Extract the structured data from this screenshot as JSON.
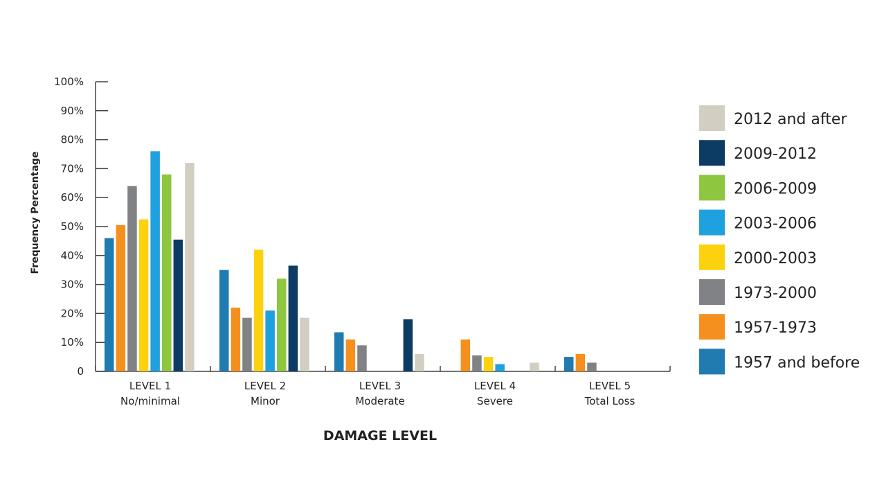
{
  "chart_data": {
    "type": "bar",
    "xlabel": "DAMAGE LEVEL",
    "ylabel": "Frequency Percentage",
    "ylim": [
      0,
      100
    ],
    "yticks": [
      "0",
      "10%",
      "20%",
      "30%",
      "40%",
      "50%",
      "60%",
      "70%",
      "80%",
      "90%",
      "100%"
    ],
    "grid": false,
    "legend_position": "right",
    "categories": [
      {
        "line1": "LEVEL 1",
        "line2": "No/minimal"
      },
      {
        "line1": "LEVEL 2",
        "line2": "Minor"
      },
      {
        "line1": "LEVEL 3",
        "line2": "Moderate"
      },
      {
        "line1": "LEVEL 4",
        "line2": "Severe"
      },
      {
        "line1": "LEVEL 5",
        "line2": "Total Loss"
      }
    ],
    "series": [
      {
        "name": "1957 and before",
        "color": "#1f7bb0",
        "values": [
          46,
          35,
          13.5,
          0,
          5
        ]
      },
      {
        "name": "1957-1973",
        "color": "#f5901e",
        "values": [
          50.5,
          22,
          11,
          11,
          6
        ]
      },
      {
        "name": "1973-2000",
        "color": "#808285",
        "values": [
          64,
          18.5,
          9,
          5.5,
          3
        ]
      },
      {
        "name": "2000-2003",
        "color": "#fcd20f",
        "values": [
          52.5,
          42,
          0,
          5,
          0
        ]
      },
      {
        "name": "2003-2006",
        "color": "#1ea1de",
        "values": [
          76,
          21,
          0,
          2.5,
          0
        ]
      },
      {
        "name": "2006-2009",
        "color": "#8dc63f",
        "values": [
          68,
          32,
          0,
          0,
          0
        ]
      },
      {
        "name": "2009-2012",
        "color": "#0c3b63",
        "values": [
          45.5,
          36.5,
          18,
          0,
          0
        ]
      },
      {
        "name": "2012 and after",
        "color": "#d2cfc2",
        "values": [
          72,
          18.5,
          6,
          3,
          0
        ]
      }
    ]
  }
}
